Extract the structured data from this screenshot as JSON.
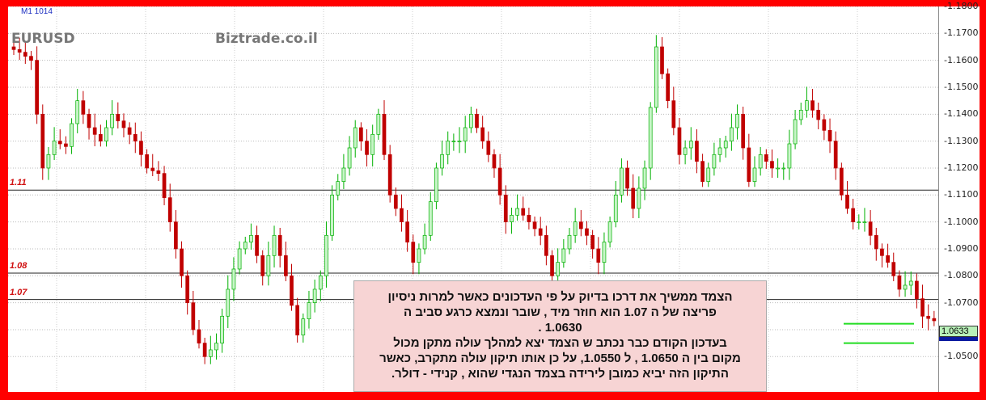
{
  "header": {
    "timeframe": "M1 1014",
    "symbol": "EURUSD",
    "brand": "Biztrade.co.il"
  },
  "levels": [
    {
      "label": "1.11",
      "price": 1.1118
    },
    {
      "label": "1.08",
      "price": 1.081
    },
    {
      "label": "1.07",
      "price": 1.0712
    }
  ],
  "targets": [
    1.0622,
    1.055
  ],
  "current_price": "1.0633",
  "colors": {
    "up": "#00b000",
    "up_fill": "#c8f5c8",
    "down": "#c00000",
    "level": "#222222",
    "target": "#22dd22",
    "frame": "#ff0000"
  },
  "note": {
    "lines": [
      "הצמד ממשיך את דרכו   בדיוק על פי העדכונים כאשר למרות ניסיון",
      "פריצה של ה 1.07 הוא חוזר מיד  , שובר  ונמצא כרגע סביב  ה",
      "1.0630 .",
      "בעדכון הקודם כבר   נכתב ש הצמד יצא למהלך עולה מתקן מכול",
      "מקום בין ה 1.0650 , ל 1.0550, על כן אותו תיקון עולה  מתקרב, כאשר",
      "התיקון הזה    יביא כמובן לירידה בצמד הנגדי שהוא  , קנידי - דולר."
    ]
  },
  "chart_data": {
    "type": "candlestick",
    "ylim": [
      1.045,
      1.18
    ],
    "yticks": [
      "1.1800",
      "1.1700",
      "1.1600",
      "1.1500",
      "1.1400",
      "1.1300",
      "1.1200",
      "1.1100",
      "1.1000",
      "1.0900",
      "1.0800",
      "1.0700",
      "1.0500"
    ],
    "grid": true,
    "closes": [
      1.163,
      1.16,
      1.12,
      1.13,
      1.128,
      1.145,
      1.135,
      1.13,
      1.14,
      1.135,
      1.13,
      1.12,
      1.118,
      1.1,
      1.08,
      1.06,
      1.05,
      1.055,
      1.075,
      1.09,
      1.095,
      1.08,
      1.095,
      1.08,
      1.058,
      1.07,
      1.08,
      1.11,
      1.12,
      1.135,
      1.125,
      1.14,
      1.11,
      1.1,
      1.085,
      1.095,
      1.12,
      1.13,
      1.13,
      1.14,
      1.13,
      1.12,
      1.1,
      1.105,
      1.1,
      1.095,
      1.08,
      1.09,
      1.1,
      1.095,
      1.085,
      1.1,
      1.12,
      1.105,
      1.12,
      1.165,
      1.145,
      1.125,
      1.13,
      1.115,
      1.125,
      1.13,
      1.14,
      1.115,
      1.125,
      1.12,
      1.12,
      1.138,
      1.145,
      1.138,
      1.13,
      1.11,
      1.1,
      1.1,
      1.09,
      1.085,
      1.075,
      1.078,
      1.065,
      1.0633
    ]
  }
}
